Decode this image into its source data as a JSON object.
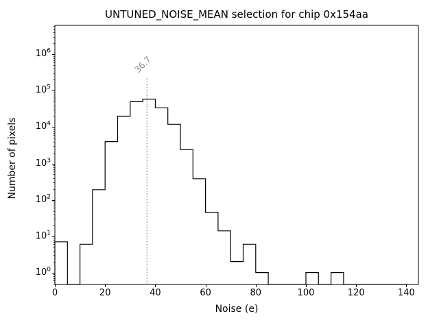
{
  "chart_data": {
    "type": "histogram-step",
    "title": "UNTUNED_NOISE_MEAN selection for chip 0x154aa",
    "xlabel": "Noise (e)",
    "ylabel": "Number of pixels",
    "x_scale": "linear",
    "y_scale": "log",
    "xlim": [
      0,
      144.8
    ],
    "ylim": [
      0.47,
      6300000
    ],
    "xticks": [
      0,
      20,
      40,
      60,
      80,
      100,
      120,
      140
    ],
    "ytick_base": "10",
    "ytick_exponents": [
      0,
      1,
      2,
      3,
      4,
      5,
      6
    ],
    "grid": false,
    "legend": null,
    "line_color": "#000000",
    "bin_width": 5,
    "bin_edges": [
      0,
      5,
      10,
      15,
      20,
      25,
      30,
      35,
      40,
      45,
      50,
      55,
      60,
      65,
      70,
      75,
      80,
      85,
      90,
      95,
      100,
      105,
      110,
      115,
      120,
      125,
      130,
      135,
      140
    ],
    "counts": [
      7,
      0,
      6,
      190,
      4000,
      20000,
      50000,
      59000,
      34000,
      12000,
      2400,
      380,
      45,
      14,
      2,
      6,
      1,
      0,
      0,
      0,
      1,
      0,
      1,
      0,
      0,
      0,
      0,
      0
    ],
    "marker": {
      "value": 36.7,
      "label": "36.7",
      "color": "#8a8a8a",
      "style": "dotted",
      "ymax_fraction": 0.8
    }
  }
}
